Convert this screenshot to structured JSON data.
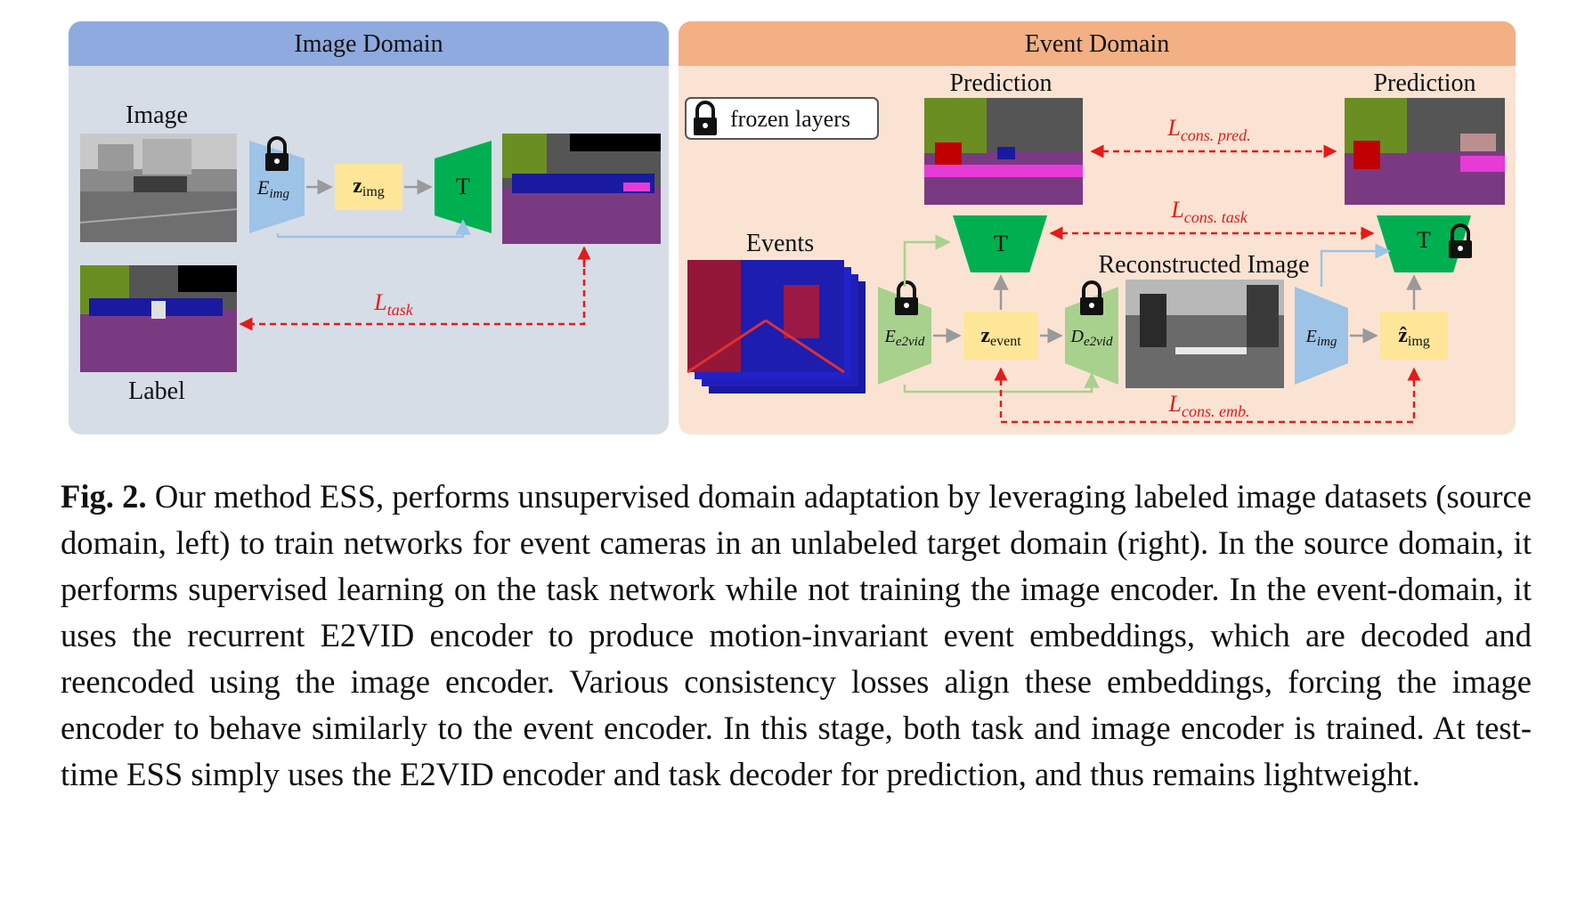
{
  "figure": {
    "image_domain": {
      "title": "Image Domain",
      "image_label": "Image",
      "label_label": "Label",
      "encoder": {
        "symbol": "E",
        "subscript": "img"
      },
      "embedding": {
        "symbol": "z",
        "subscript": "img"
      },
      "task": "T",
      "loss": {
        "symbol": "L",
        "subscript": "task"
      }
    },
    "event_domain": {
      "title": "Event Domain",
      "legend": "frozen layers",
      "prediction_left": "Prediction",
      "prediction_right": "Prediction",
      "events_label": "Events",
      "recon_label": "Reconstructed Image",
      "encoder_e2vid": {
        "symbol": "E",
        "subscript": "e2vid"
      },
      "decoder_e2vid": {
        "symbol": "D",
        "subscript": "e2vid"
      },
      "embedding_event": {
        "symbol": "z",
        "subscript": "event"
      },
      "encoder_img": {
        "symbol": "E",
        "subscript": "img"
      },
      "embedding_hat": {
        "symbol": "ẑ",
        "subscript": "img"
      },
      "task_left": "T",
      "task_right": "T",
      "loss_pred": {
        "symbol": "L",
        "subscript": "cons. pred."
      },
      "loss_task": {
        "symbol": "L",
        "subscript": "cons. task"
      },
      "loss_emb": {
        "symbol": "L",
        "subscript": "cons. emb."
      }
    },
    "colors": {
      "image_panel": "#d7dde6",
      "image_header": "#8eaadf",
      "event_panel": "#fbe3d3",
      "event_header": "#f3b084",
      "encoder_blue": "#9dc3e6",
      "encoder_green": "#a9d18e",
      "task_green": "#00b050",
      "embedding_yellow": "#ffe699",
      "loss_red": "#e21b1b"
    }
  },
  "caption": {
    "label": "Fig. 2.",
    "text": " Our method ESS, performs unsupervised domain adaptation by leveraging labeled image datasets (source domain, left) to train networks for event cameras in an unlabeled target domain (right). In the source domain, it performs supervised learning on the task network while not training the image encoder. In the event-domain, it uses the recurrent E2VID encoder to produce motion-invariant event embeddings, which are decoded and reencoded using the image encoder. Various consistency losses align these embeddings, forcing the image encoder to behave similarly to the event encoder. In this stage, both task and image encoder is trained. At test-time ESS simply uses the E2VID encoder and task decoder for prediction, and thus remains lightweight."
  }
}
